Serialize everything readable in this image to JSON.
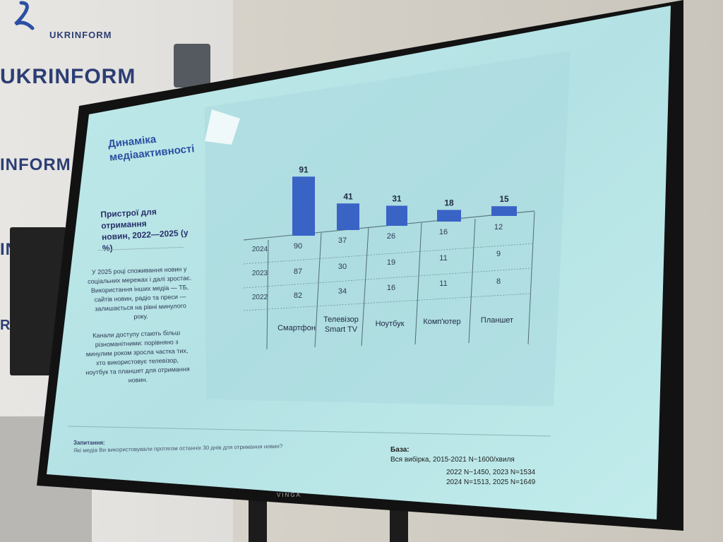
{
  "background": {
    "banner_small": "UKRINFORM",
    "banner_big_1": "UKRINFORM",
    "banner_big_2": "INFORM",
    "banner_big_3": "INFO",
    "banner_big_4": "RI"
  },
  "slide": {
    "title_line1": "Динаміка",
    "title_line2": "медіаактивності",
    "subtitle_line1": "Пристрої для отримання",
    "subtitle_line2": "новин, 2022—2025 (у %)",
    "body_para1": "У 2025 році споживання новин у соціальних мережах і далі зростає. Використання інших медіа — ТБ, сайтів новин, радіо та преси — залишається на рівні минулого року.",
    "body_para2": "Канали доступу стають більш різноманітними: порівняно з минулим роком зросла частка тих, хто використовує телевізор, ноутбук та планшет для отримання новин.",
    "question_label": "Запитання:",
    "question_text": "Які медіа Ви використовували протягом останніх 30 днів для отримання новин?",
    "base_label": "База:",
    "base_line1": "Вся вибірка, 2015-2021  N~1600/хвиля",
    "base_line2": "2022  N~1450, 2023  N=1534",
    "base_line3": "2024  N=1513, 2025  N=1649",
    "tv_brand": "VINGA"
  },
  "chart_data": {
    "type": "bar",
    "categories": [
      "Смартфон",
      "Телевізор Smart TV",
      "Ноутбук",
      "Комп'ютер",
      "Планшет"
    ],
    "category_lines": [
      [
        "Смартфон"
      ],
      [
        "Телевізор",
        "Smart TV"
      ],
      [
        "Ноутбук"
      ],
      [
        "Комп'ютер"
      ],
      [
        "Планшет"
      ]
    ],
    "series": [
      {
        "values": [
          91,
          41,
          31,
          18,
          15
        ]
      }
    ],
    "table": {
      "row_labels": [
        "2024",
        "2023",
        "2022"
      ],
      "rows": [
        [
          90,
          37,
          26,
          16,
          12
        ],
        [
          87,
          30,
          19,
          11,
          9
        ],
        [
          82,
          34,
          16,
          11,
          8
        ]
      ]
    },
    "ylim": [
      0,
      100
    ],
    "bar_color": "#3a63c6"
  }
}
